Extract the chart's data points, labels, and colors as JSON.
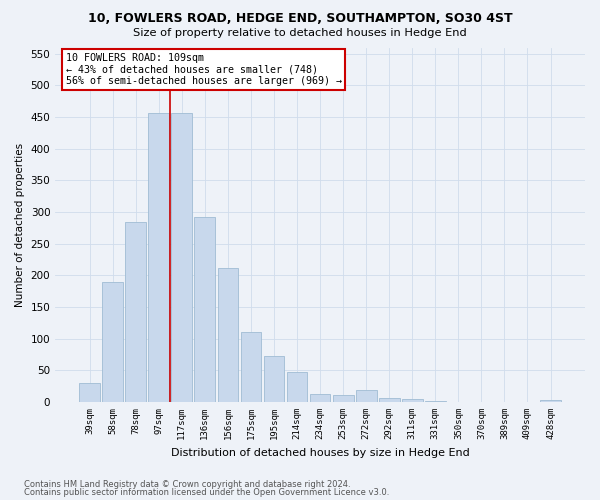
{
  "title1": "10, FOWLERS ROAD, HEDGE END, SOUTHAMPTON, SO30 4ST",
  "title2": "Size of property relative to detached houses in Hedge End",
  "xlabel": "Distribution of detached houses by size in Hedge End",
  "ylabel": "Number of detached properties",
  "bar_labels": [
    "39sqm",
    "58sqm",
    "78sqm",
    "97sqm",
    "117sqm",
    "136sqm",
    "156sqm",
    "175sqm",
    "195sqm",
    "214sqm",
    "234sqm",
    "253sqm",
    "272sqm",
    "292sqm",
    "311sqm",
    "331sqm",
    "350sqm",
    "370sqm",
    "389sqm",
    "409sqm",
    "428sqm"
  ],
  "bar_values": [
    30,
    190,
    285,
    457,
    457,
    292,
    212,
    110,
    72,
    47,
    13,
    11,
    19,
    6,
    5,
    2,
    0,
    0,
    0,
    0,
    3
  ],
  "bar_color": "#c8d8ec",
  "bar_edgecolor": "#a0bcd4",
  "vline_color": "#cc0000",
  "annotation_text": "10 FOWLERS ROAD: 109sqm\n← 43% of detached houses are smaller (748)\n56% of semi-detached houses are larger (969) →",
  "annotation_box_edgecolor": "#cc0000",
  "ylim_max": 560,
  "yticks": [
    0,
    50,
    100,
    150,
    200,
    250,
    300,
    350,
    400,
    450,
    500,
    550
  ],
  "grid_color": "#d0dcec",
  "background_color": "#eef2f8",
  "footer1": "Contains HM Land Registry data © Crown copyright and database right 2024.",
  "footer2": "Contains public sector information licensed under the Open Government Licence v3.0."
}
